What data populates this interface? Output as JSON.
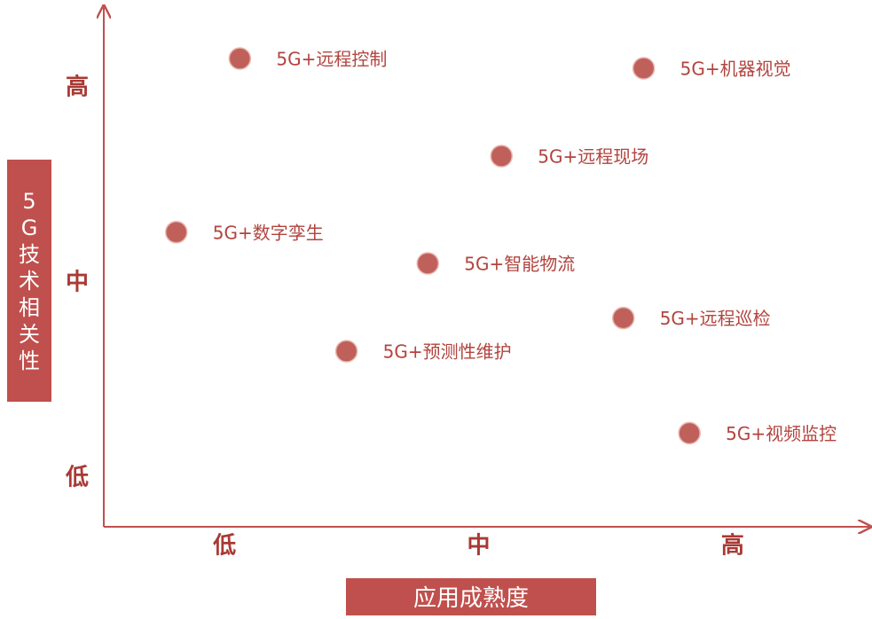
{
  "chart_data": {
    "type": "scatter",
    "xlabel": "应用成熟度",
    "ylabel": "5G技术相关性",
    "labels": [
      "5G+远程控制",
      "5G+机器视觉",
      "5G+远程现场",
      "5G+数字孪生",
      "5G+智能物流",
      "5G+远程巡检",
      "5G+预测性维护",
      "5G+视频监控"
    ],
    "x": [
      1.06,
      2.65,
      2.09,
      0.81,
      1.8,
      2.57,
      1.48,
      2.83
    ],
    "values": [
      3.15,
      3.1,
      2.65,
      2.26,
      2.1,
      1.82,
      1.65,
      1.23
    ],
    "color": "#c0605a",
    "xlim": [
      0.5,
      3.5
    ],
    "ylim": [
      0.75,
      3.4
    ],
    "xticks": [
      {
        "value": 1,
        "label": "低"
      },
      {
        "value": 2,
        "label": "中"
      },
      {
        "value": 3,
        "label": "高"
      }
    ],
    "yticks": [
      {
        "value": 1,
        "label": "低"
      },
      {
        "value": 2,
        "label": "中"
      },
      {
        "value": 3,
        "label": "高"
      }
    ]
  }
}
